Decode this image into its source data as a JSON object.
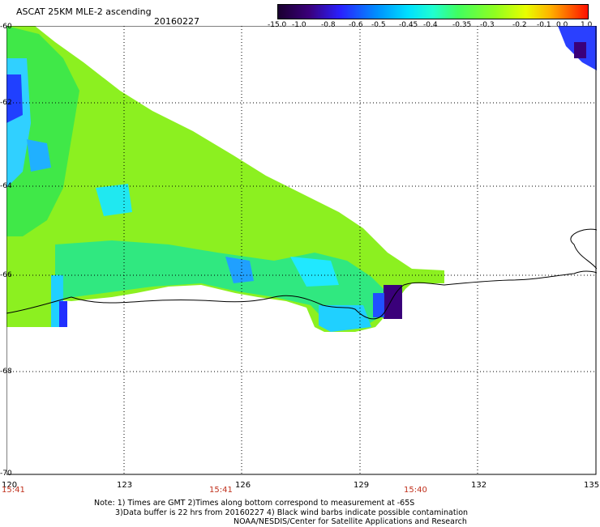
{
  "header": {
    "title": "ASCAT 25KM MLE-2 ascending",
    "date": "20160227"
  },
  "colorbar": {
    "labels": [
      "-15.0",
      "-1.0",
      "-0.8",
      "-0.6",
      "-0.5",
      "-0.45",
      "-0.4",
      "-0.35",
      "-0.3",
      "-0.2",
      "-0.1",
      "0.0",
      "1.0"
    ],
    "colors": [
      "#1a0030",
      "#3a007a",
      "#2a20ff",
      "#0080ff",
      "#00c0ff",
      "#00ffff",
      "#30ffb0",
      "#40ff40",
      "#90ff20",
      "#d0ff00",
      "#ffd000",
      "#ff8000",
      "#ff2000"
    ]
  },
  "map": {
    "lat_labels": [
      "-60",
      "-62",
      "-64",
      "-66",
      "-68",
      "-70"
    ],
    "lon_labels": [
      "120",
      "123",
      "126",
      "129",
      "132",
      "135"
    ],
    "time_labels": [
      "15:41",
      "15:41",
      "15:40"
    ]
  },
  "notes": {
    "line1": "Note: 1) Times are GMT 2)Times along bottom correspond to measurement at -65S",
    "line2": "3)Data buffer is 22 hrs from 20160227 4) Black wind barbs indicate possible contamination",
    "line3": "NOAA/NESDIS/Center for Satellite Applications and Research"
  }
}
